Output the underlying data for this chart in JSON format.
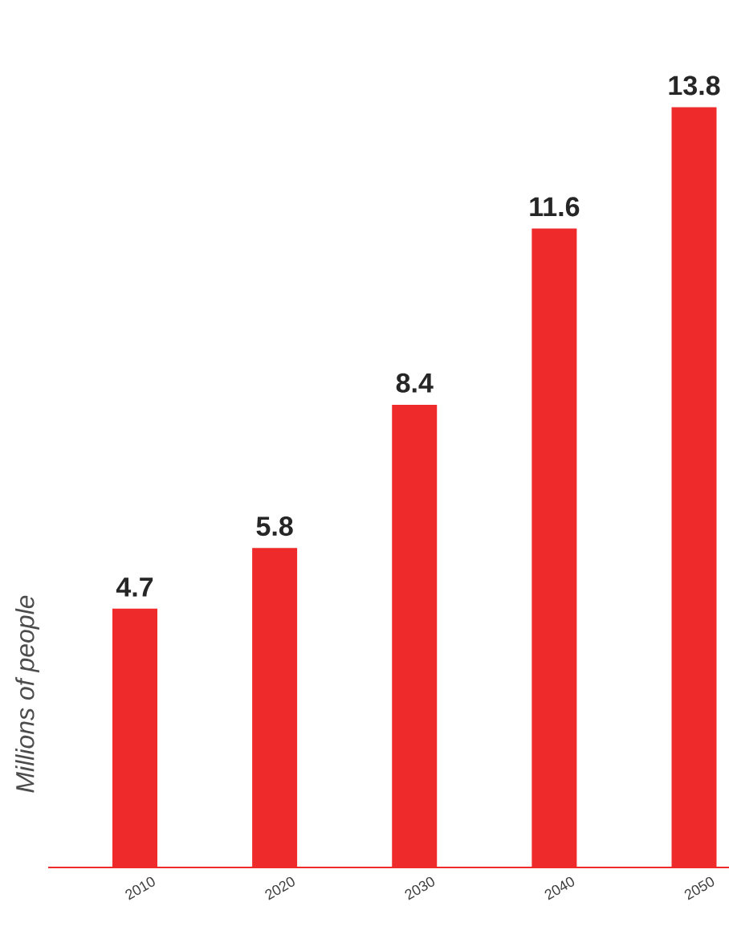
{
  "chart_data": {
    "type": "bar",
    "ylabel": "Millions of people",
    "categories": [
      "2010",
      "2020",
      "2030",
      "2040",
      "2050"
    ],
    "values": [
      4.7,
      5.8,
      8.4,
      11.6,
      13.8
    ],
    "color": "#ee2a2a",
    "data_labels": true
  }
}
